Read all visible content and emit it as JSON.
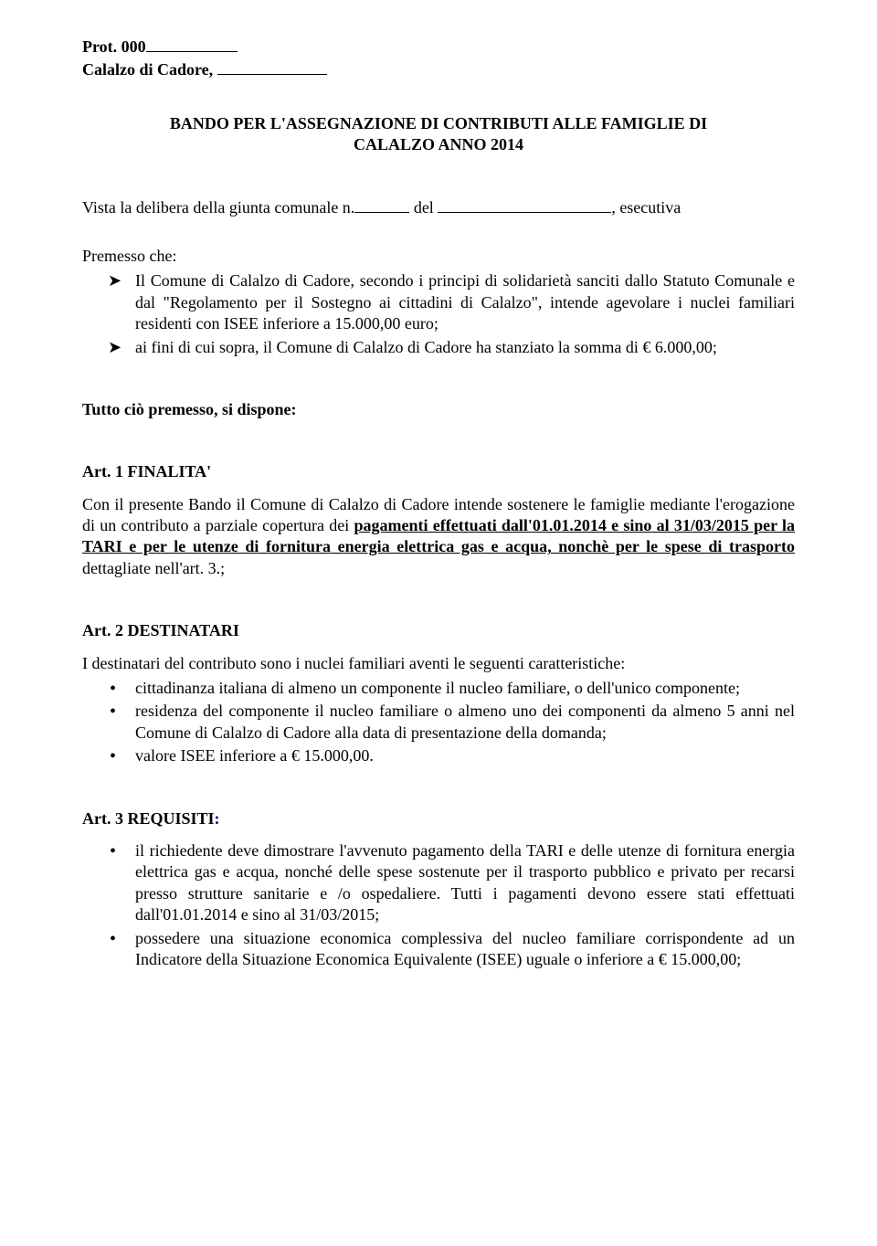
{
  "header": {
    "prot_label": "Prot. 000",
    "place_label": "Calalzo di Cadore,"
  },
  "title": {
    "line1": "BANDO PER L'ASSEGNAZIONE DI CONTRIBUTI ALLE FAMIGLIE DI",
    "line2": "CALALZO ANNO 2014"
  },
  "delibera": {
    "intro": "Vista la delibera della giunta comunale n.",
    "del": " del ",
    "esecutiva": ", esecutiva"
  },
  "premesso": {
    "label": "Premesso che:",
    "item1": "Il Comune di Calalzo di Cadore, secondo i principi di solidarietà sanciti dallo Statuto Comunale e dal \"Regolamento per il Sostegno ai cittadini di Calalzo\", intende agevolare i nuclei familiari residenti con ISEE inferiore a 15.000,00 euro;",
    "item2": "ai fini di cui sopra, il Comune di Calalzo di Cadore ha stanziato la somma di € 6.000,00;"
  },
  "tutto_cio": "Tutto ciò premesso, si dispone:",
  "art1": {
    "heading": "Art. 1 FINALITA'",
    "p1a": "Con il presente Bando il Comune di Calalzo di Cadore intende sostenere le famiglie mediante l'erogazione di un contributo a parziale copertura dei ",
    "p1b_u": "pagamenti effettuati dall'01.01.2014 e sino al 31/03/2015 per la TARI e per le utenze di fornitura energia elettrica gas e acqua,  nonchè per le spese di trasporto ",
    "p1c": "dettagliate nell'art. 3.;"
  },
  "art2": {
    "heading": "Art. 2  DESTINATARI",
    "intro": "I destinatari del contributo sono i nuclei familiari aventi le seguenti caratteristiche:",
    "li1": "cittadinanza italiana di almeno un componente il nucleo familiare, o dell'unico componente;",
    "li2": "residenza del componente il nucleo familiare o almeno uno dei componenti da almeno 5 anni nel Comune di Calalzo di Cadore  alla data di presentazione della domanda;",
    "li3": "valore  ISEE inferiore a € 15.000,00."
  },
  "art3": {
    "heading": "Art. 3  REQUISITI",
    "colon": ":",
    "li1": "il richiedente deve dimostrare l'avvenuto pagamento della TARI e delle utenze di fornitura energia elettrica gas e acqua,  nonché delle spese sostenute per il trasporto pubblico e privato per recarsi presso strutture sanitarie e /o ospedaliere. Tutti i pagamenti devono essere stati effettuati dall'01.01.2014 e sino al 31/03/2015;",
    "li2": "possedere una situazione economica complessiva del nucleo familiare corrispondente ad un Indicatore della Situazione Economica Equivalente (ISEE) uguale o inferiore a € 15.000,00;"
  }
}
